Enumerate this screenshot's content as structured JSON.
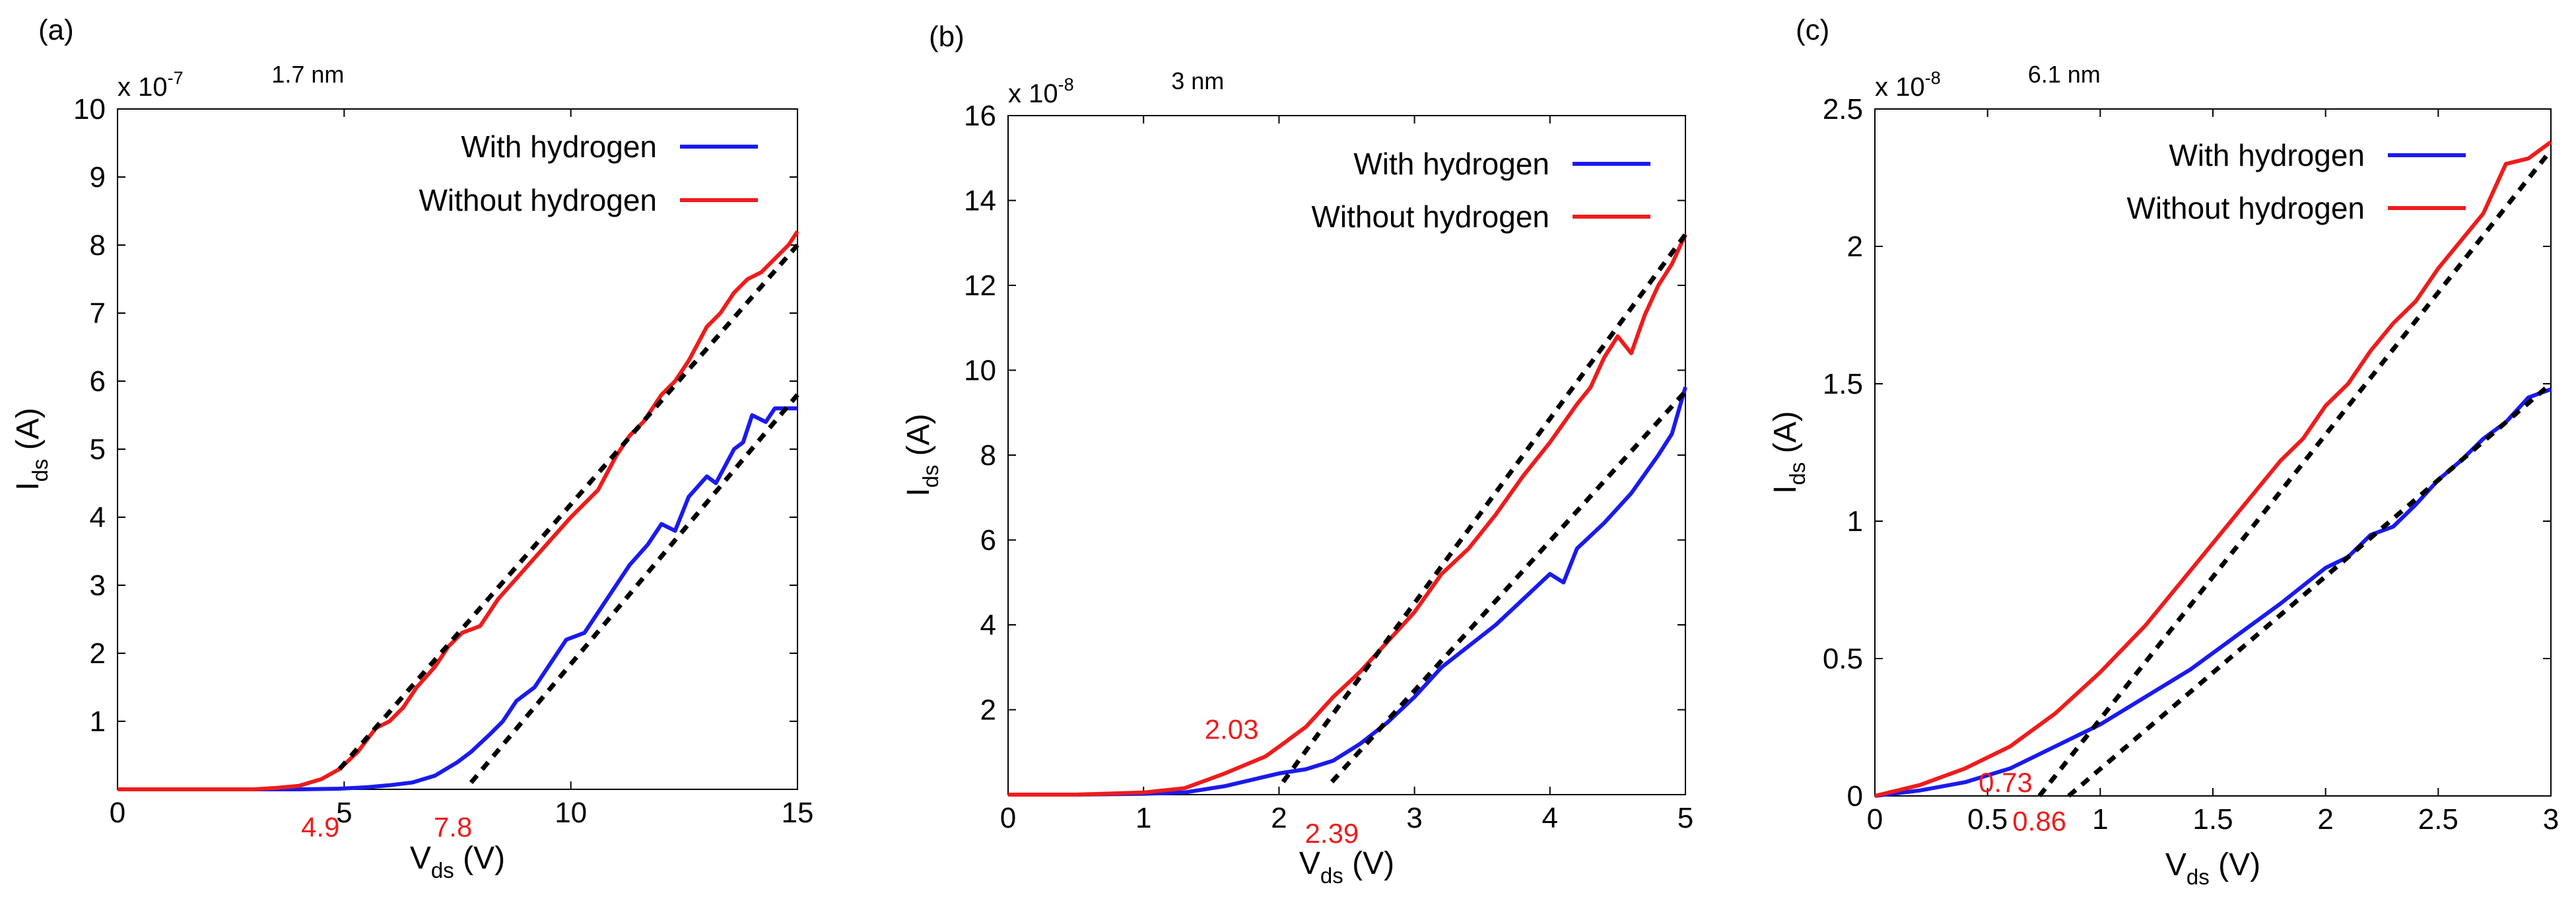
{
  "chart_data": [
    {
      "type": "line",
      "panel_label": "(a)",
      "title": "1.7 nm",
      "xlabel": {
        "main": "V",
        "sub": "ds",
        "unit": " (V)"
      },
      "ylabel": {
        "main": "I",
        "sub": "ds",
        "unit": " (A)"
      },
      "y_multiplier": {
        "base": "x 10",
        "exp": "-7"
      },
      "xlim": [
        0,
        15
      ],
      "ylim": [
        0,
        10
      ],
      "x_ticks": [
        {
          "v": 0,
          "label": "0"
        },
        {
          "v": 5,
          "label": "5"
        },
        {
          "v": 10,
          "label": "10"
        },
        {
          "v": 15,
          "label": "15"
        }
      ],
      "y_ticks": [
        {
          "v": 1,
          "label": "1"
        },
        {
          "v": 2,
          "label": "2"
        },
        {
          "v": 3,
          "label": "3"
        },
        {
          "v": 4,
          "label": "4"
        },
        {
          "v": 5,
          "label": "5"
        },
        {
          "v": 6,
          "label": "6"
        },
        {
          "v": 7,
          "label": "7"
        },
        {
          "v": 8,
          "label": "8"
        },
        {
          "v": 9,
          "label": "9"
        },
        {
          "v": 10,
          "label": "10"
        }
      ],
      "series": [
        {
          "name": "With hydrogen",
          "color": "#1a1aee",
          "points": [
            [
              0,
              0
            ],
            [
              2,
              0
            ],
            [
              3,
              0
            ],
            [
              4,
              0
            ],
            [
              4.9,
              0.01
            ],
            [
              5.5,
              0.03
            ],
            [
              6,
              0.06
            ],
            [
              6.5,
              0.1
            ],
            [
              7,
              0.2
            ],
            [
              7.5,
              0.4
            ],
            [
              7.8,
              0.55
            ],
            [
              8.2,
              0.8
            ],
            [
              8.5,
              1.0
            ],
            [
              8.8,
              1.3
            ],
            [
              9.2,
              1.5
            ],
            [
              9.5,
              1.8
            ],
            [
              9.9,
              2.2
            ],
            [
              10.3,
              2.3
            ],
            [
              10.6,
              2.6
            ],
            [
              11,
              3.0
            ],
            [
              11.3,
              3.3
            ],
            [
              11.7,
              3.6
            ],
            [
              12,
              3.9
            ],
            [
              12.3,
              3.8
            ],
            [
              12.6,
              4.3
            ],
            [
              13,
              4.6
            ],
            [
              13.2,
              4.5
            ],
            [
              13.6,
              5.0
            ],
            [
              13.8,
              5.1
            ],
            [
              14,
              5.5
            ],
            [
              14.3,
              5.4
            ],
            [
              14.5,
              5.6
            ],
            [
              15,
              5.6
            ]
          ]
        },
        {
          "name": "Without hydrogen",
          "color": "#ee1c1c",
          "points": [
            [
              0,
              0
            ],
            [
              2,
              0
            ],
            [
              3,
              0
            ],
            [
              3.5,
              0.02
            ],
            [
              4,
              0.05
            ],
            [
              4.5,
              0.15
            ],
            [
              4.9,
              0.3
            ],
            [
              5.3,
              0.55
            ],
            [
              5.7,
              0.9
            ],
            [
              6,
              1.0
            ],
            [
              6.3,
              1.2
            ],
            [
              6.6,
              1.5
            ],
            [
              7,
              1.8
            ],
            [
              7.3,
              2.1
            ],
            [
              7.6,
              2.3
            ],
            [
              8,
              2.4
            ],
            [
              8.4,
              2.8
            ],
            [
              8.8,
              3.1
            ],
            [
              9.2,
              3.4
            ],
            [
              9.6,
              3.7
            ],
            [
              10,
              4.0
            ],
            [
              10.3,
              4.2
            ],
            [
              10.6,
              4.4
            ],
            [
              11,
              4.9
            ],
            [
              11.3,
              5.2
            ],
            [
              11.6,
              5.4
            ],
            [
              12,
              5.8
            ],
            [
              12.3,
              6.0
            ],
            [
              12.6,
              6.3
            ],
            [
              13,
              6.8
            ],
            [
              13.3,
              7.0
            ],
            [
              13.6,
              7.3
            ],
            [
              13.9,
              7.5
            ],
            [
              14.2,
              7.6
            ],
            [
              14.5,
              7.8
            ],
            [
              14.8,
              8.0
            ],
            [
              15,
              8.2
            ]
          ]
        }
      ],
      "fit_lines": [
        {
          "x": [
            4.9,
            15
          ],
          "y": [
            0.3,
            8.0
          ]
        },
        {
          "x": [
            7.8,
            15
          ],
          "y": [
            0.1,
            5.8
          ]
        }
      ],
      "annotations": [
        {
          "text": "4.9",
          "x": 4.9,
          "y": -0.55,
          "anchor": "end"
        },
        {
          "text": "7.8",
          "x": 7.4,
          "y": -0.55,
          "anchor": "middle"
        }
      ],
      "legend": {
        "position": "top-right",
        "entries": [
          "With hydrogen",
          "Without hydrogen"
        ]
      }
    },
    {
      "type": "line",
      "panel_label": "(b)",
      "title": "3 nm",
      "xlabel": {
        "main": "V",
        "sub": "ds",
        "unit": " (V)"
      },
      "ylabel": {
        "main": "I",
        "sub": "ds",
        "unit": " (A)"
      },
      "y_multiplier": {
        "base": "x 10",
        "exp": "-8"
      },
      "xlim": [
        0,
        5
      ],
      "ylim": [
        0,
        16
      ],
      "x_ticks": [
        {
          "v": 0,
          "label": "0"
        },
        {
          "v": 1,
          "label": "1"
        },
        {
          "v": 2,
          "label": "2"
        },
        {
          "v": 3,
          "label": "3"
        },
        {
          "v": 4,
          "label": "4"
        },
        {
          "v": 5,
          "label": "5"
        }
      ],
      "y_ticks": [
        {
          "v": 2,
          "label": "2"
        },
        {
          "v": 4,
          "label": "4"
        },
        {
          "v": 6,
          "label": "6"
        },
        {
          "v": 8,
          "label": "8"
        },
        {
          "v": 10,
          "label": "10"
        },
        {
          "v": 12,
          "label": "12"
        },
        {
          "v": 14,
          "label": "14"
        },
        {
          "v": 16,
          "label": "16"
        }
      ],
      "series": [
        {
          "name": "With hydrogen",
          "color": "#1a1aee",
          "points": [
            [
              0,
              0
            ],
            [
              0.5,
              0
            ],
            [
              1,
              0.02
            ],
            [
              1.3,
              0.05
            ],
            [
              1.6,
              0.2
            ],
            [
              2,
              0.5
            ],
            [
              2.2,
              0.6
            ],
            [
              2.4,
              0.8
            ],
            [
              2.6,
              1.2
            ],
            [
              2.8,
              1.7
            ],
            [
              3,
              2.3
            ],
            [
              3.2,
              3.0
            ],
            [
              3.4,
              3.5
            ],
            [
              3.6,
              4.0
            ],
            [
              3.8,
              4.6
            ],
            [
              4,
              5.2
            ],
            [
              4.1,
              5.0
            ],
            [
              4.2,
              5.8
            ],
            [
              4.4,
              6.4
            ],
            [
              4.6,
              7.1
            ],
            [
              4.8,
              8.0
            ],
            [
              4.9,
              8.5
            ],
            [
              5,
              9.6
            ]
          ]
        },
        {
          "name": "Without hydrogen",
          "color": "#ee1c1c",
          "points": [
            [
              0,
              0
            ],
            [
              0.5,
              0
            ],
            [
              1,
              0.05
            ],
            [
              1.3,
              0.15
            ],
            [
              1.6,
              0.5
            ],
            [
              1.9,
              0.9
            ],
            [
              2.03,
              1.2
            ],
            [
              2.2,
              1.6
            ],
            [
              2.4,
              2.3
            ],
            [
              2.6,
              2.9
            ],
            [
              2.8,
              3.6
            ],
            [
              3,
              4.3
            ],
            [
              3.2,
              5.2
            ],
            [
              3.4,
              5.8
            ],
            [
              3.6,
              6.6
            ],
            [
              3.8,
              7.5
            ],
            [
              4,
              8.3
            ],
            [
              4.2,
              9.2
            ],
            [
              4.3,
              9.6
            ],
            [
              4.4,
              10.3
            ],
            [
              4.5,
              10.8
            ],
            [
              4.6,
              10.4
            ],
            [
              4.7,
              11.3
            ],
            [
              4.8,
              12.0
            ],
            [
              4.9,
              12.5
            ],
            [
              5,
              13.2
            ]
          ]
        }
      ],
      "fit_lines": [
        {
          "x": [
            2.03,
            5
          ],
          "y": [
            0.3,
            13.2
          ]
        },
        {
          "x": [
            2.39,
            5
          ],
          "y": [
            0.3,
            9.5
          ]
        }
      ],
      "annotations": [
        {
          "text": "2.03",
          "x": 1.65,
          "y": 1.55,
          "anchor": "middle"
        },
        {
          "text": "2.39",
          "x": 2.39,
          "y": -0.9,
          "anchor": "middle"
        }
      ],
      "legend": {
        "position": "top-right",
        "entries": [
          "With hydrogen",
          "Without hydrogen"
        ]
      }
    },
    {
      "type": "line",
      "panel_label": "(c)",
      "title": "6.1 nm",
      "xlabel": {
        "main": "V",
        "sub": "ds",
        "unit": " (V)"
      },
      "ylabel": {
        "main": "I",
        "sub": "ds",
        "unit": " (A)"
      },
      "y_multiplier": {
        "base": "x 10",
        "exp": "-8"
      },
      "xlim": [
        0,
        3
      ],
      "ylim": [
        0,
        2.5
      ],
      "x_ticks": [
        {
          "v": 0,
          "label": "0"
        },
        {
          "v": 0.5,
          "label": "0.5"
        },
        {
          "v": 1,
          "label": "1"
        },
        {
          "v": 1.5,
          "label": "1.5"
        },
        {
          "v": 2,
          "label": "2"
        },
        {
          "v": 2.5,
          "label": "2.5"
        },
        {
          "v": 3,
          "label": "3"
        }
      ],
      "y_ticks": [
        {
          "v": 0,
          "label": "0"
        },
        {
          "v": 0.5,
          "label": "0.5"
        },
        {
          "v": 1,
          "label": "1"
        },
        {
          "v": 1.5,
          "label": "1.5"
        },
        {
          "v": 2,
          "label": "2"
        },
        {
          "v": 2.5,
          "label": "2.5"
        }
      ],
      "series": [
        {
          "name": "With hydrogen",
          "color": "#1a1aee",
          "points": [
            [
              0,
              0
            ],
            [
              0.2,
              0.02
            ],
            [
              0.4,
              0.05
            ],
            [
              0.6,
              0.1
            ],
            [
              0.8,
              0.18
            ],
            [
              1,
              0.26
            ],
            [
              1.2,
              0.36
            ],
            [
              1.4,
              0.46
            ],
            [
              1.6,
              0.58
            ],
            [
              1.8,
              0.7
            ],
            [
              2,
              0.83
            ],
            [
              2.1,
              0.87
            ],
            [
              2.2,
              0.95
            ],
            [
              2.3,
              0.98
            ],
            [
              2.4,
              1.06
            ],
            [
              2.5,
              1.15
            ],
            [
              2.6,
              1.22
            ],
            [
              2.7,
              1.3
            ],
            [
              2.8,
              1.36
            ],
            [
              2.9,
              1.45
            ],
            [
              3,
              1.48
            ]
          ]
        },
        {
          "name": "Without hydrogen",
          "color": "#ee1c1c",
          "points": [
            [
              0,
              0
            ],
            [
              0.2,
              0.04
            ],
            [
              0.4,
              0.1
            ],
            [
              0.6,
              0.18
            ],
            [
              0.8,
              0.3
            ],
            [
              1,
              0.45
            ],
            [
              1.2,
              0.62
            ],
            [
              1.4,
              0.82
            ],
            [
              1.6,
              1.02
            ],
            [
              1.8,
              1.22
            ],
            [
              1.9,
              1.3
            ],
            [
              2,
              1.42
            ],
            [
              2.1,
              1.5
            ],
            [
              2.2,
              1.62
            ],
            [
              2.3,
              1.72
            ],
            [
              2.4,
              1.8
            ],
            [
              2.5,
              1.92
            ],
            [
              2.6,
              2.02
            ],
            [
              2.7,
              2.12
            ],
            [
              2.8,
              2.3
            ],
            [
              2.9,
              2.32
            ],
            [
              3,
              2.38
            ]
          ]
        }
      ],
      "fit_lines": [
        {
          "x": [
            0.73,
            3
          ],
          "y": [
            0.0,
            2.35
          ]
        },
        {
          "x": [
            0.86,
            3
          ],
          "y": [
            0.0,
            1.5
          ]
        }
      ],
      "annotations": [
        {
          "text": "0.73",
          "x": 0.58,
          "y": 0.05,
          "anchor": "middle"
        },
        {
          "text": "0.86",
          "x": 0.73,
          "y": -0.09,
          "anchor": "middle"
        }
      ],
      "legend": {
        "position": "top-right",
        "entries": [
          "With hydrogen",
          "Without hydrogen"
        ]
      }
    }
  ]
}
